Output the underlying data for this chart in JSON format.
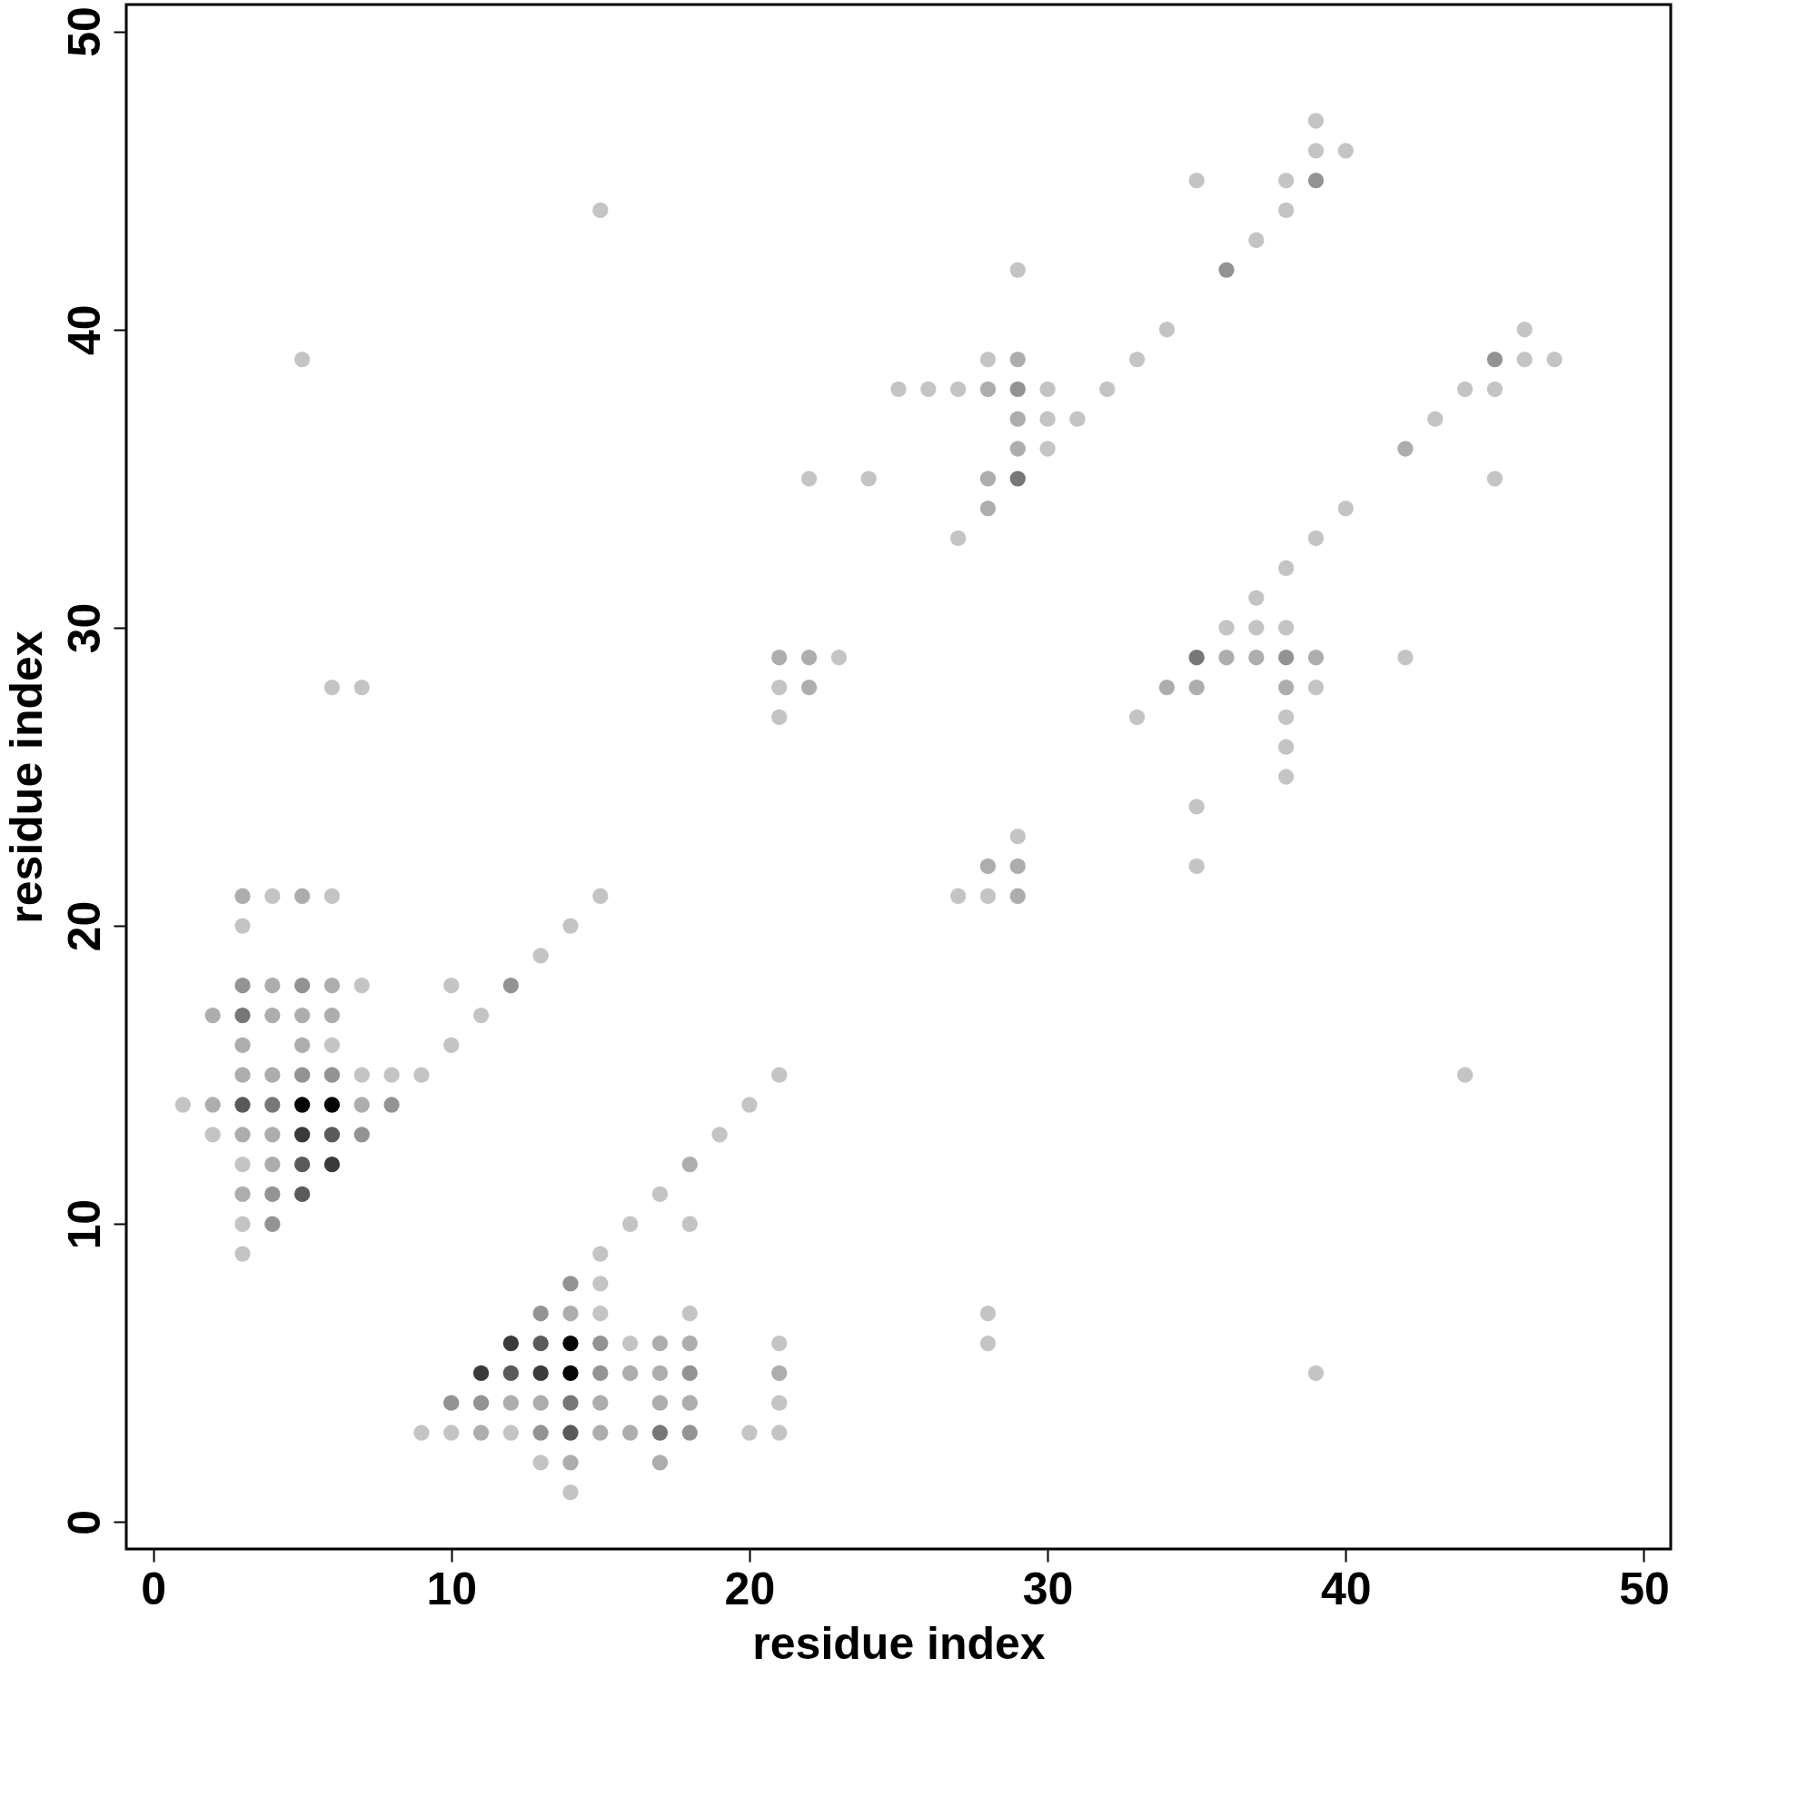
{
  "chart_data": {
    "type": "scatter",
    "xlabel": "residue index",
    "ylabel": "residue index",
    "xlim": [
      -0.9,
      50.9
    ],
    "ylim": [
      -0.9,
      50.9
    ],
    "xticks": [
      0,
      10,
      20,
      30,
      40,
      50
    ],
    "yticks": [
      0,
      10,
      20,
      30,
      40,
      50
    ],
    "grid": false,
    "marker": "circle",
    "series": [
      {
        "color": "#c4c4c4",
        "x": [
          4,
          6,
          3,
          7,
          6,
          7,
          8,
          9,
          1,
          2,
          3,
          3,
          3,
          5,
          6,
          7,
          10,
          10,
          11,
          13,
          14,
          15,
          15,
          15,
          15,
          15,
          18,
          16,
          21,
          21,
          9,
          10,
          12,
          20,
          21,
          13,
          14,
          16,
          17,
          18,
          19,
          20,
          21,
          21,
          21,
          23,
          22,
          24,
          27,
          28,
          29,
          28,
          28,
          39,
          44,
          29,
          28,
          33,
          25,
          26,
          27,
          30,
          32,
          30,
          31,
          30,
          27,
          34,
          35,
          37,
          38,
          38,
          39,
          39,
          40,
          46,
          46,
          47,
          44,
          45,
          43,
          45,
          39,
          40,
          38,
          37,
          36,
          37,
          38,
          42,
          39,
          33,
          38,
          38,
          38,
          35,
          35
        ],
        "values": [
          21,
          21,
          20,
          18,
          16,
          15,
          15,
          15,
          14,
          13,
          12,
          10,
          9,
          39,
          28,
          28,
          18,
          16,
          17,
          19,
          20,
          21,
          44,
          9,
          8,
          7,
          7,
          6,
          6,
          4,
          3,
          3,
          3,
          3,
          3,
          2,
          1,
          10,
          11,
          10,
          13,
          14,
          15,
          28,
          27,
          29,
          35,
          35,
          21,
          21,
          23,
          7,
          6,
          5,
          15,
          42,
          39,
          39,
          38,
          38,
          38,
          38,
          38,
          37,
          37,
          36,
          33,
          40,
          45,
          43,
          44,
          45,
          46,
          47,
          46,
          40,
          39,
          39,
          38,
          38,
          37,
          35,
          33,
          34,
          32,
          31,
          30,
          30,
          30,
          29,
          28,
          27,
          27,
          26,
          25,
          24,
          22
        ]
      },
      {
        "color": "#adadad",
        "x": [
          3,
          5,
          4,
          6,
          2,
          4,
          5,
          6,
          3,
          5,
          3,
          4,
          2,
          7,
          3,
          4,
          4,
          3,
          14,
          17,
          18,
          16,
          17,
          21,
          12,
          13,
          15,
          17,
          18,
          11,
          15,
          16,
          14,
          17,
          18,
          21,
          22,
          22,
          28,
          29,
          29,
          29,
          28,
          29,
          29,
          28,
          28,
          42,
          36,
          37,
          39,
          34,
          35,
          38
        ],
        "values": [
          21,
          21,
          18,
          18,
          17,
          17,
          17,
          17,
          16,
          16,
          15,
          15,
          14,
          14,
          13,
          13,
          12,
          11,
          7,
          6,
          6,
          5,
          5,
          5,
          4,
          4,
          4,
          4,
          4,
          3,
          3,
          3,
          2,
          2,
          12,
          29,
          29,
          28,
          22,
          21,
          22,
          39,
          38,
          37,
          36,
          35,
          34,
          36,
          29,
          29,
          29,
          28,
          28,
          28
        ]
      },
      {
        "color": "#939393",
        "x": [
          3,
          5,
          5,
          6,
          8,
          7,
          4,
          4,
          12,
          14,
          13,
          15,
          15,
          18,
          10,
          11,
          13,
          18,
          29,
          36,
          39,
          45,
          38
        ],
        "values": [
          18,
          18,
          15,
          15,
          14,
          13,
          11,
          10,
          18,
          8,
          7,
          6,
          5,
          5,
          4,
          4,
          3,
          3,
          38,
          42,
          45,
          39,
          29
        ]
      },
      {
        "color": "#777777",
        "x": [
          3,
          4,
          14,
          17,
          29,
          35
        ],
        "values": [
          17,
          14,
          4,
          3,
          35,
          29
        ]
      },
      {
        "color": "#5a5a5a",
        "x": [
          3,
          6,
          5,
          5,
          13,
          12,
          14
        ],
        "values": [
          14,
          13,
          12,
          11,
          6,
          5,
          3
        ]
      },
      {
        "color": "#3a3a3a",
        "x": [
          5,
          6,
          12,
          11,
          13
        ],
        "values": [
          13,
          12,
          6,
          5,
          5
        ]
      },
      {
        "color": "#050505",
        "x": [
          5,
          6,
          14,
          14
        ],
        "values": [
          14,
          14,
          6,
          5
        ]
      }
    ]
  }
}
